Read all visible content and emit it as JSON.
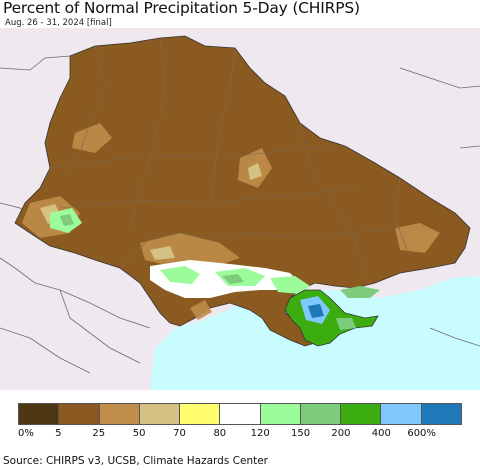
{
  "title": "Percent of Normal Precipitation 5-Day (CHIRPS)",
  "subtitle": "Aug. 26 - 31, 2024 [final]",
  "source": "Source: CHIRPS v3, UCSB, Climate Hazards Center",
  "colors": {
    "background": "#efe9ef",
    "sea": "#c8fcfe",
    "land_dominant": "#8b5a20",
    "border": "#888888"
  },
  "legend": {
    "colors": [
      "#4e3713",
      "#8b5a20",
      "#c08d4a",
      "#d6c184",
      "#fffe6e",
      "#ffffff",
      "#9cfc9c",
      "#7ccc7c",
      "#3cad11",
      "#7fc8fb",
      "#1f78b8"
    ],
    "ticks": [
      "0%",
      "5",
      "25",
      "50",
      "70",
      "80",
      "120",
      "150",
      "200",
      "400",
      "600%"
    ]
  }
}
